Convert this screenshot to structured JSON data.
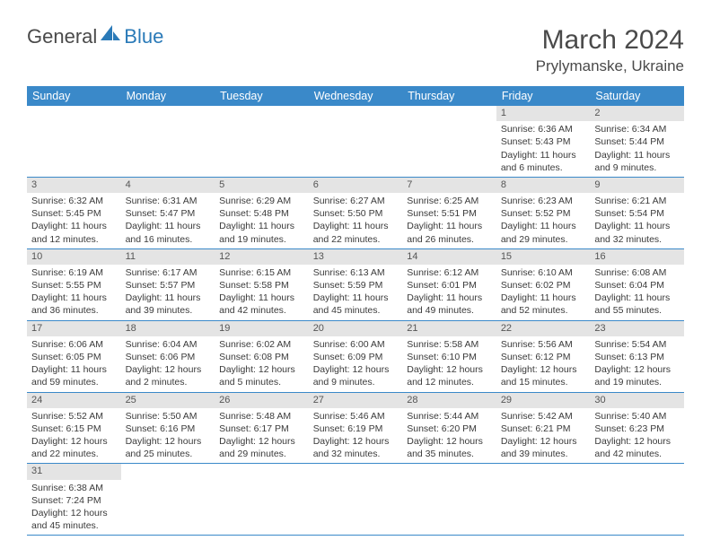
{
  "logo": {
    "text_general": "General",
    "text_blue": "Blue"
  },
  "title": "March 2024",
  "location": "Prylymanske, Ukraine",
  "weekdays": [
    "Sunday",
    "Monday",
    "Tuesday",
    "Wednesday",
    "Thursday",
    "Friday",
    "Saturday"
  ],
  "colors": {
    "header_bg": "#3a89c9",
    "header_text": "#ffffff",
    "daynum_bg": "#e4e4e4",
    "border": "#3a89c9",
    "text": "#333333",
    "title_text": "#4a4a4a",
    "logo_blue": "#2a7ab8"
  },
  "first_weekday_index": 5,
  "days": [
    {
      "n": 1,
      "sunrise": "6:36 AM",
      "sunset": "5:43 PM",
      "daylight": "11 hours and 6 minutes."
    },
    {
      "n": 2,
      "sunrise": "6:34 AM",
      "sunset": "5:44 PM",
      "daylight": "11 hours and 9 minutes."
    },
    {
      "n": 3,
      "sunrise": "6:32 AM",
      "sunset": "5:45 PM",
      "daylight": "11 hours and 12 minutes."
    },
    {
      "n": 4,
      "sunrise": "6:31 AM",
      "sunset": "5:47 PM",
      "daylight": "11 hours and 16 minutes."
    },
    {
      "n": 5,
      "sunrise": "6:29 AM",
      "sunset": "5:48 PM",
      "daylight": "11 hours and 19 minutes."
    },
    {
      "n": 6,
      "sunrise": "6:27 AM",
      "sunset": "5:50 PM",
      "daylight": "11 hours and 22 minutes."
    },
    {
      "n": 7,
      "sunrise": "6:25 AM",
      "sunset": "5:51 PM",
      "daylight": "11 hours and 26 minutes."
    },
    {
      "n": 8,
      "sunrise": "6:23 AM",
      "sunset": "5:52 PM",
      "daylight": "11 hours and 29 minutes."
    },
    {
      "n": 9,
      "sunrise": "6:21 AM",
      "sunset": "5:54 PM",
      "daylight": "11 hours and 32 minutes."
    },
    {
      "n": 10,
      "sunrise": "6:19 AM",
      "sunset": "5:55 PM",
      "daylight": "11 hours and 36 minutes."
    },
    {
      "n": 11,
      "sunrise": "6:17 AM",
      "sunset": "5:57 PM",
      "daylight": "11 hours and 39 minutes."
    },
    {
      "n": 12,
      "sunrise": "6:15 AM",
      "sunset": "5:58 PM",
      "daylight": "11 hours and 42 minutes."
    },
    {
      "n": 13,
      "sunrise": "6:13 AM",
      "sunset": "5:59 PM",
      "daylight": "11 hours and 45 minutes."
    },
    {
      "n": 14,
      "sunrise": "6:12 AM",
      "sunset": "6:01 PM",
      "daylight": "11 hours and 49 minutes."
    },
    {
      "n": 15,
      "sunrise": "6:10 AM",
      "sunset": "6:02 PM",
      "daylight": "11 hours and 52 minutes."
    },
    {
      "n": 16,
      "sunrise": "6:08 AM",
      "sunset": "6:04 PM",
      "daylight": "11 hours and 55 minutes."
    },
    {
      "n": 17,
      "sunrise": "6:06 AM",
      "sunset": "6:05 PM",
      "daylight": "11 hours and 59 minutes."
    },
    {
      "n": 18,
      "sunrise": "6:04 AM",
      "sunset": "6:06 PM",
      "daylight": "12 hours and 2 minutes."
    },
    {
      "n": 19,
      "sunrise": "6:02 AM",
      "sunset": "6:08 PM",
      "daylight": "12 hours and 5 minutes."
    },
    {
      "n": 20,
      "sunrise": "6:00 AM",
      "sunset": "6:09 PM",
      "daylight": "12 hours and 9 minutes."
    },
    {
      "n": 21,
      "sunrise": "5:58 AM",
      "sunset": "6:10 PM",
      "daylight": "12 hours and 12 minutes."
    },
    {
      "n": 22,
      "sunrise": "5:56 AM",
      "sunset": "6:12 PM",
      "daylight": "12 hours and 15 minutes."
    },
    {
      "n": 23,
      "sunrise": "5:54 AM",
      "sunset": "6:13 PM",
      "daylight": "12 hours and 19 minutes."
    },
    {
      "n": 24,
      "sunrise": "5:52 AM",
      "sunset": "6:15 PM",
      "daylight": "12 hours and 22 minutes."
    },
    {
      "n": 25,
      "sunrise": "5:50 AM",
      "sunset": "6:16 PM",
      "daylight": "12 hours and 25 minutes."
    },
    {
      "n": 26,
      "sunrise": "5:48 AM",
      "sunset": "6:17 PM",
      "daylight": "12 hours and 29 minutes."
    },
    {
      "n": 27,
      "sunrise": "5:46 AM",
      "sunset": "6:19 PM",
      "daylight": "12 hours and 32 minutes."
    },
    {
      "n": 28,
      "sunrise": "5:44 AM",
      "sunset": "6:20 PM",
      "daylight": "12 hours and 35 minutes."
    },
    {
      "n": 29,
      "sunrise": "5:42 AM",
      "sunset": "6:21 PM",
      "daylight": "12 hours and 39 minutes."
    },
    {
      "n": 30,
      "sunrise": "5:40 AM",
      "sunset": "6:23 PM",
      "daylight": "12 hours and 42 minutes."
    },
    {
      "n": 31,
      "sunrise": "6:38 AM",
      "sunset": "7:24 PM",
      "daylight": "12 hours and 45 minutes."
    }
  ],
  "labels": {
    "sunrise": "Sunrise:",
    "sunset": "Sunset:",
    "daylight": "Daylight:"
  }
}
